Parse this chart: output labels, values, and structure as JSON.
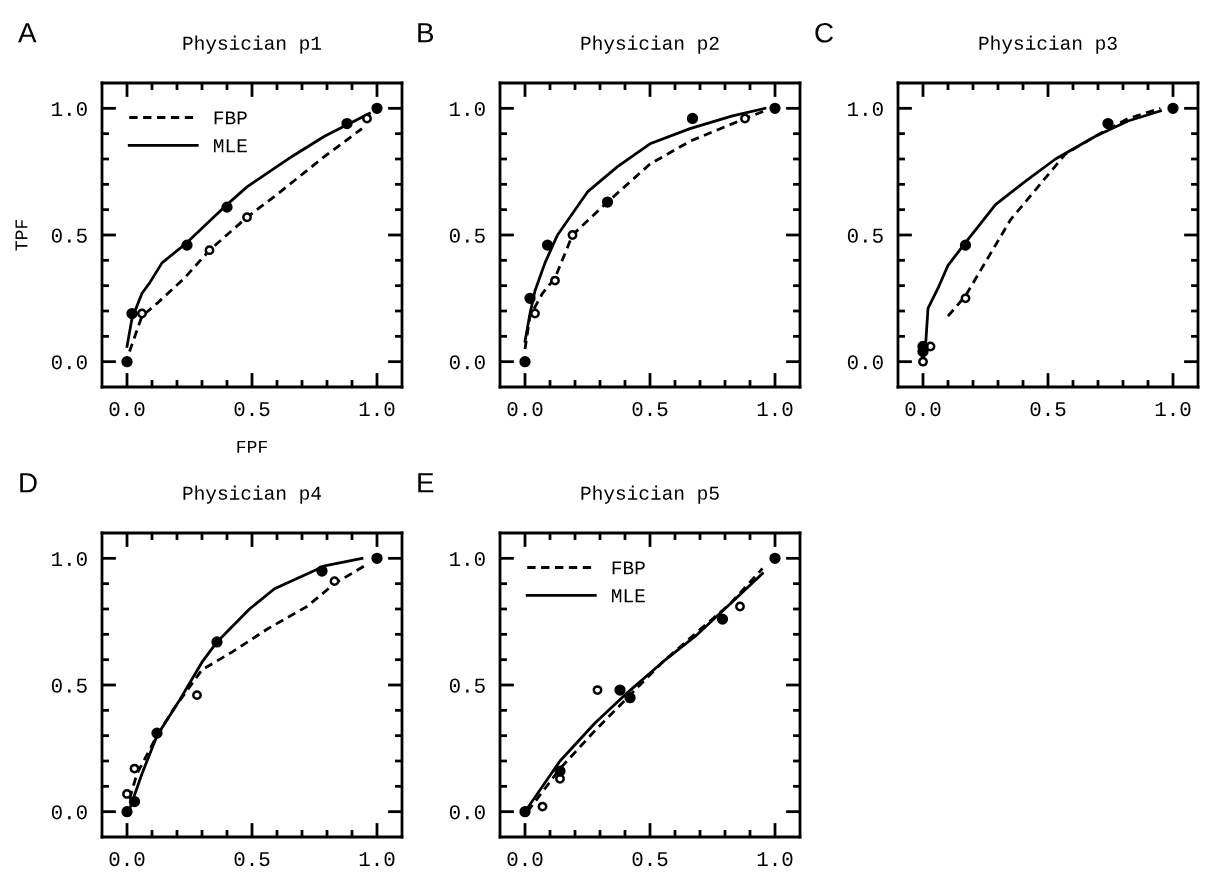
{
  "chart_data": [
    {
      "type": "line",
      "title": "Physician p1",
      "annotations": [
        "A"
      ],
      "xlabel": "FPF",
      "ylabel": "TPF",
      "legend": "top left",
      "xlim": [
        -0.1,
        1.1
      ],
      "ylim": [
        -0.1,
        1.1
      ],
      "xticks": [
        {
          "value": 0,
          "label": "0.0"
        },
        {
          "value": 0.1,
          "label": null
        },
        {
          "value": 0.2,
          "label": null
        },
        {
          "value": 0.3,
          "label": null
        },
        {
          "value": 0.4,
          "label": null
        },
        {
          "value": 0.5,
          "label": "0.5"
        },
        {
          "value": 0.6,
          "label": null
        },
        {
          "value": 0.7,
          "label": null
        },
        {
          "value": 0.8,
          "label": null
        },
        {
          "value": 0.9,
          "label": null
        },
        {
          "value": 1.0,
          "label": "1.0"
        }
      ],
      "yticks": [
        {
          "value": 0,
          "label": "0.0"
        },
        {
          "value": 0.1,
          "label": null
        },
        {
          "value": 0.2,
          "label": null
        },
        {
          "value": 0.3,
          "label": null
        },
        {
          "value": 0.4,
          "label": null
        },
        {
          "value": 0.5,
          "label": "0.5"
        },
        {
          "value": 0.6,
          "label": null
        },
        {
          "value": 0.7,
          "label": null
        },
        {
          "value": 0.8,
          "label": null
        },
        {
          "value": 0.9,
          "label": null
        },
        {
          "value": 1.0,
          "label": "1.0"
        }
      ],
      "series": [
        {
          "name": "FBP",
          "line_style": "dashed",
          "color": "#000000",
          "x": [
            0.01,
            0.06,
            0.12,
            0.23,
            0.33,
            0.48,
            0.6,
            0.79,
            0.94
          ],
          "values": [
            0.04,
            0.18,
            0.23,
            0.33,
            0.44,
            0.57,
            0.66,
            0.81,
            0.92
          ]
        },
        {
          "name": "MLE",
          "line_style": "solid",
          "color": "#000000",
          "x": [
            0,
            0.02,
            0.06,
            0.09,
            0.14,
            0.24,
            0.4,
            0.48,
            0.66,
            0.79,
            0.97
          ],
          "values": [
            0.06,
            0.17,
            0.27,
            0.31,
            0.39,
            0.47,
            0.62,
            0.69,
            0.81,
            0.89,
            0.98
          ]
        },
        {
          "type": "scatter",
          "marker": "circle",
          "color": "#ffffff",
          "x": [
            0.06,
            0.33,
            0.48,
            0.96
          ],
          "values": [
            0.19,
            0.44,
            0.57,
            0.96
          ]
        },
        {
          "type": "scatter",
          "marker": "circle",
          "color": "#000000",
          "x": [
            0,
            0.02,
            0.24,
            0.4,
            0.88,
            1.0
          ],
          "values": [
            0,
            0.19,
            0.46,
            0.61,
            0.94,
            1.0
          ]
        }
      ]
    },
    {
      "type": "line",
      "title": "Physician p2",
      "annotations": [
        "B"
      ],
      "xlim": [
        -0.1,
        1.1
      ],
      "ylim": [
        -0.1,
        1.1
      ],
      "xticks": [
        {
          "value": 0,
          "label": "0.0"
        },
        {
          "value": 0.1,
          "label": null
        },
        {
          "value": 0.2,
          "label": null
        },
        {
          "value": 0.3,
          "label": null
        },
        {
          "value": 0.4,
          "label": null
        },
        {
          "value": 0.5,
          "label": "0.5"
        },
        {
          "value": 0.6,
          "label": null
        },
        {
          "value": 0.7,
          "label": null
        },
        {
          "value": 0.8,
          "label": null
        },
        {
          "value": 0.9,
          "label": null
        },
        {
          "value": 1.0,
          "label": "1.0"
        }
      ],
      "yticks": [
        {
          "value": 0,
          "label": "0.0"
        },
        {
          "value": 0.1,
          "label": null
        },
        {
          "value": 0.2,
          "label": null
        },
        {
          "value": 0.3,
          "label": null
        },
        {
          "value": 0.4,
          "label": null
        },
        {
          "value": 0.5,
          "label": "0.5"
        },
        {
          "value": 0.6,
          "label": null
        },
        {
          "value": 0.7,
          "label": null
        },
        {
          "value": 0.8,
          "label": null
        },
        {
          "value": 0.9,
          "label": null
        },
        {
          "value": 1.0,
          "label": "1.0"
        }
      ],
      "series": [
        {
          "line_style": "dashed",
          "color": "#000000",
          "x": [
            0,
            0.02,
            0.07,
            0.12,
            0.19,
            0.33,
            0.5,
            0.66,
            0.88,
            0.96
          ],
          "values": [
            0.05,
            0.18,
            0.27,
            0.33,
            0.5,
            0.63,
            0.78,
            0.87,
            0.96,
            0.99
          ]
        },
        {
          "line_style": "solid",
          "color": "#000000",
          "x": [
            0,
            0.02,
            0.04,
            0.08,
            0.13,
            0.25,
            0.37,
            0.5,
            0.66,
            0.83,
            0.96
          ],
          "values": [
            0.08,
            0.19,
            0.28,
            0.39,
            0.5,
            0.67,
            0.77,
            0.86,
            0.92,
            0.97,
            1.0
          ]
        },
        {
          "type": "scatter",
          "marker": "circle",
          "color": "#ffffff",
          "x": [
            0.04,
            0.12,
            0.19,
            0.88
          ],
          "values": [
            0.19,
            0.32,
            0.5,
            0.96
          ]
        },
        {
          "type": "scatter",
          "marker": "circle",
          "color": "#000000",
          "x": [
            0,
            0.02,
            0.09,
            0.33,
            0.67,
            1.0
          ],
          "values": [
            0,
            0.25,
            0.46,
            0.63,
            0.96,
            1.0
          ]
        }
      ]
    },
    {
      "type": "line",
      "title": "Physician p3",
      "annotations": [
        "C"
      ],
      "xlim": [
        -0.1,
        1.1
      ],
      "ylim": [
        -0.1,
        1.1
      ],
      "xticks": [
        {
          "value": 0,
          "label": "0.0"
        },
        {
          "value": 0.1,
          "label": null
        },
        {
          "value": 0.2,
          "label": null
        },
        {
          "value": 0.3,
          "label": null
        },
        {
          "value": 0.4,
          "label": null
        },
        {
          "value": 0.5,
          "label": "0.5"
        },
        {
          "value": 0.6,
          "label": null
        },
        {
          "value": 0.7,
          "label": null
        },
        {
          "value": 0.8,
          "label": null
        },
        {
          "value": 0.9,
          "label": null
        },
        {
          "value": 1.0,
          "label": "1.0"
        }
      ],
      "yticks": [
        {
          "value": 0,
          "label": "0.0"
        },
        {
          "value": 0.1,
          "label": null
        },
        {
          "value": 0.2,
          "label": null
        },
        {
          "value": 0.3,
          "label": null
        },
        {
          "value": 0.4,
          "label": null
        },
        {
          "value": 0.5,
          "label": "0.5"
        },
        {
          "value": 0.6,
          "label": null
        },
        {
          "value": 0.7,
          "label": null
        },
        {
          "value": 0.8,
          "label": null
        },
        {
          "value": 0.9,
          "label": null
        },
        {
          "value": 1.0,
          "label": "1.0"
        }
      ],
      "series": [
        {
          "line_style": "dashed",
          "color": "#000000",
          "x": [
            0.1,
            0.17,
            0.26,
            0.35,
            0.46,
            0.57,
            0.69,
            0.82,
            0.95
          ],
          "values": [
            0.18,
            0.26,
            0.41,
            0.56,
            0.69,
            0.82,
            0.89,
            0.96,
            1.0
          ]
        },
        {
          "line_style": "solid",
          "color": "#000000",
          "x": [
            0.01,
            0.02,
            0.06,
            0.1,
            0.17,
            0.29,
            0.42,
            0.53,
            0.69,
            0.82,
            0.95
          ],
          "values": [
            0.06,
            0.21,
            0.29,
            0.38,
            0.47,
            0.62,
            0.72,
            0.8,
            0.89,
            0.95,
            0.99
          ]
        },
        {
          "type": "scatter",
          "marker": "circle",
          "color": "#ffffff",
          "x": [
            0,
            0.03,
            0.17
          ],
          "values": [
            0,
            0.06,
            0.25
          ]
        },
        {
          "type": "scatter",
          "marker": "circle",
          "color": "#000000",
          "x": [
            0,
            0,
            0.17,
            0.74,
            1.0
          ],
          "values": [
            0.04,
            0.06,
            0.46,
            0.94,
            1.0
          ]
        }
      ]
    },
    {
      "type": "line",
      "title": "Physician p4",
      "annotations": [
        "D"
      ],
      "xlim": [
        -0.1,
        1.1
      ],
      "ylim": [
        -0.1,
        1.1
      ],
      "xticks": [
        {
          "value": 0,
          "label": "0.0"
        },
        {
          "value": 0.1,
          "label": null
        },
        {
          "value": 0.2,
          "label": null
        },
        {
          "value": 0.3,
          "label": null
        },
        {
          "value": 0.4,
          "label": null
        },
        {
          "value": 0.5,
          "label": "0.5"
        },
        {
          "value": 0.6,
          "label": null
        },
        {
          "value": 0.7,
          "label": null
        },
        {
          "value": 0.8,
          "label": null
        },
        {
          "value": 0.9,
          "label": null
        },
        {
          "value": 1.0,
          "label": "1.0"
        }
      ],
      "yticks": [
        {
          "value": 0,
          "label": "0.0"
        },
        {
          "value": 0.1,
          "label": null
        },
        {
          "value": 0.2,
          "label": null
        },
        {
          "value": 0.3,
          "label": null
        },
        {
          "value": 0.4,
          "label": null
        },
        {
          "value": 0.5,
          "label": "0.5"
        },
        {
          "value": 0.6,
          "label": null
        },
        {
          "value": 0.7,
          "label": null
        },
        {
          "value": 0.8,
          "label": null
        },
        {
          "value": 0.9,
          "label": null
        },
        {
          "value": 1.0,
          "label": "1.0"
        }
      ],
      "series": [
        {
          "line_style": "dashed",
          "color": "#000000",
          "x": [
            0.01,
            0.04,
            0.12,
            0.19,
            0.3,
            0.42,
            0.56,
            0.72,
            0.83,
            0.95
          ],
          "values": [
            0.05,
            0.15,
            0.3,
            0.41,
            0.56,
            0.63,
            0.72,
            0.81,
            0.9,
            0.97
          ]
        },
        {
          "line_style": "solid",
          "color": "#000000",
          "x": [
            0.01,
            0.06,
            0.12,
            0.21,
            0.3,
            0.36,
            0.49,
            0.59,
            0.79,
            0.94
          ],
          "values": [
            0.01,
            0.15,
            0.3,
            0.44,
            0.59,
            0.67,
            0.8,
            0.88,
            0.97,
            1.0
          ]
        },
        {
          "type": "scatter",
          "marker": "circle",
          "color": "#ffffff",
          "x": [
            0,
            0.03,
            0.28,
            0.83
          ],
          "values": [
            0.07,
            0.17,
            0.46,
            0.91
          ]
        },
        {
          "type": "scatter",
          "marker": "circle",
          "color": "#000000",
          "x": [
            0,
            0.03,
            0.12,
            0.36,
            0.78,
            1.0
          ],
          "values": [
            0,
            0.04,
            0.31,
            0.67,
            0.95,
            1.0
          ]
        }
      ]
    },
    {
      "type": "line",
      "title": "Physician p5",
      "annotations": [
        "E"
      ],
      "legend": "top left",
      "xlim": [
        -0.1,
        1.1
      ],
      "ylim": [
        -0.1,
        1.1
      ],
      "xticks": [
        {
          "value": 0,
          "label": "0.0"
        },
        {
          "value": 0.1,
          "label": null
        },
        {
          "value": 0.2,
          "label": null
        },
        {
          "value": 0.3,
          "label": null
        },
        {
          "value": 0.4,
          "label": null
        },
        {
          "value": 0.5,
          "label": "0.5"
        },
        {
          "value": 0.6,
          "label": null
        },
        {
          "value": 0.7,
          "label": null
        },
        {
          "value": 0.8,
          "label": null
        },
        {
          "value": 0.9,
          "label": null
        },
        {
          "value": 1.0,
          "label": "1.0"
        }
      ],
      "yticks": [
        {
          "value": 0,
          "label": "0.0"
        },
        {
          "value": 0.1,
          "label": null
        },
        {
          "value": 0.2,
          "label": null
        },
        {
          "value": 0.3,
          "label": null
        },
        {
          "value": 0.4,
          "label": null
        },
        {
          "value": 0.5,
          "label": "0.5"
        },
        {
          "value": 0.6,
          "label": null
        },
        {
          "value": 0.7,
          "label": null
        },
        {
          "value": 0.8,
          "label": null
        },
        {
          "value": 0.9,
          "label": null
        },
        {
          "value": 1.0,
          "label": "1.0"
        }
      ],
      "series": [
        {
          "name": "FBP",
          "line_style": "dashed",
          "color": "#000000",
          "x": [
            0.01,
            0.14,
            0.28,
            0.41,
            0.55,
            0.69,
            0.82,
            0.95
          ],
          "values": [
            0.0,
            0.17,
            0.32,
            0.45,
            0.59,
            0.71,
            0.82,
            0.96
          ]
        },
        {
          "name": "MLE",
          "line_style": "solid",
          "color": "#000000",
          "x": [
            0,
            0.14,
            0.28,
            0.41,
            0.55,
            0.69,
            0.82,
            0.95
          ],
          "values": [
            0,
            0.2,
            0.35,
            0.47,
            0.59,
            0.7,
            0.82,
            0.94
          ]
        },
        {
          "type": "scatter",
          "marker": "circle",
          "color": "#ffffff",
          "x": [
            0.07,
            0.14,
            0.29,
            0.86
          ],
          "values": [
            0.02,
            0.13,
            0.48,
            0.81
          ]
        },
        {
          "type": "scatter",
          "marker": "circle",
          "color": "#000000",
          "x": [
            0,
            0.14,
            0.38,
            0.42,
            0.79,
            1.0
          ],
          "values": [
            0,
            0.16,
            0.48,
            0.45,
            0.76,
            1.0
          ]
        }
      ]
    }
  ]
}
